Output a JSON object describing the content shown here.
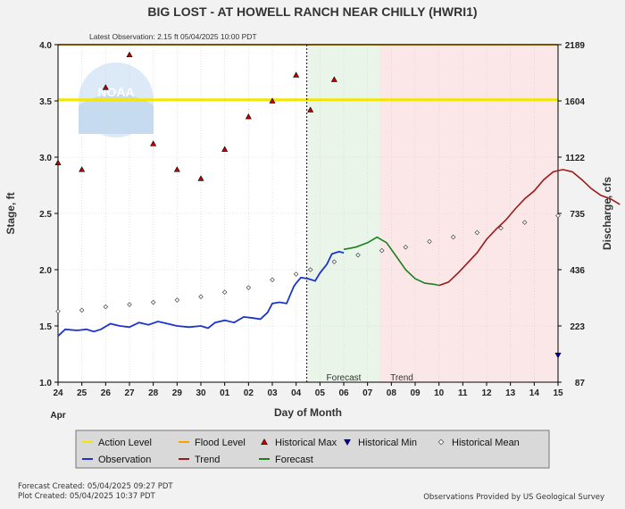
{
  "chart_data": {
    "type": "line",
    "title": "BIG LOST - AT HOWELL RANCH NEAR CHILLY  (HWRI1)",
    "subtitle": "Latest Observation: 2.15 ft 05/04/2025 10:00 PDT",
    "xlabel": "Day of Month",
    "xlabel_month": "Apr",
    "ylabel_left": "Stage, ft",
    "ylabel_right": "Discharge, cfs",
    "x_ticks": [
      "24",
      "25",
      "26",
      "27",
      "28",
      "29",
      "30",
      "01",
      "02",
      "03",
      "04",
      "05",
      "06",
      "07",
      "08",
      "09",
      "10",
      "11",
      "12",
      "13",
      "14",
      "15"
    ],
    "ylim_left": [
      1.0,
      4.0
    ],
    "y_ticks_left": [
      "1.0",
      "1.5",
      "2.0",
      "2.5",
      "3.0",
      "3.5",
      "4.0"
    ],
    "y_ticks_right": [
      {
        "stage": 1.0,
        "label": "87"
      },
      {
        "stage": 1.5,
        "label": "223"
      },
      {
        "stage": 2.0,
        "label": "436"
      },
      {
        "stage": 2.5,
        "label": "735"
      },
      {
        "stage": 3.0,
        "label": "1122"
      },
      {
        "stage": 3.5,
        "label": "1604"
      },
      {
        "stage": 4.0,
        "label": "2189"
      }
    ],
    "action_level": 3.51,
    "flood_level": 4.0,
    "zones": {
      "forecast": {
        "label": "Forecast",
        "start": 10.5,
        "end": 13.5
      },
      "trend": {
        "label": "Trend",
        "start": 13.5,
        "end": 21.0
      }
    },
    "now_x": 10.45,
    "observation": [
      [
        0,
        1.41
      ],
      [
        0.3,
        1.47
      ],
      [
        0.8,
        1.46
      ],
      [
        1.2,
        1.47
      ],
      [
        1.5,
        1.45
      ],
      [
        1.8,
        1.47
      ],
      [
        2.2,
        1.52
      ],
      [
        2.6,
        1.5
      ],
      [
        3.0,
        1.49
      ],
      [
        3.4,
        1.53
      ],
      [
        3.8,
        1.51
      ],
      [
        4.2,
        1.54
      ],
      [
        4.6,
        1.52
      ],
      [
        5.0,
        1.5
      ],
      [
        5.5,
        1.49
      ],
      [
        6.0,
        1.5
      ],
      [
        6.3,
        1.48
      ],
      [
        6.6,
        1.53
      ],
      [
        7.0,
        1.55
      ],
      [
        7.4,
        1.53
      ],
      [
        7.8,
        1.58
      ],
      [
        8.2,
        1.57
      ],
      [
        8.5,
        1.56
      ],
      [
        8.8,
        1.62
      ],
      [
        9.0,
        1.7
      ],
      [
        9.3,
        1.71
      ],
      [
        9.6,
        1.7
      ],
      [
        9.9,
        1.85
      ],
      [
        10.0,
        1.88
      ],
      [
        10.2,
        1.93
      ],
      [
        10.5,
        1.92
      ],
      [
        10.8,
        1.9
      ],
      [
        11.0,
        1.97
      ],
      [
        11.3,
        2.05
      ],
      [
        11.5,
        2.14
      ],
      [
        11.8,
        2.16
      ],
      [
        12.0,
        2.15
      ]
    ],
    "forecast": [
      [
        12.0,
        2.18
      ],
      [
        12.5,
        2.2
      ],
      [
        13.0,
        2.24
      ],
      [
        13.4,
        2.29
      ],
      [
        13.8,
        2.24
      ],
      [
        14.2,
        2.12
      ],
      [
        14.6,
        2.0
      ],
      [
        15.0,
        1.92
      ],
      [
        15.4,
        1.88
      ],
      [
        15.8,
        1.87
      ],
      [
        16.0,
        1.86
      ]
    ],
    "trend": [
      [
        16.0,
        1.86
      ],
      [
        16.4,
        1.89
      ],
      [
        16.8,
        1.97
      ],
      [
        17.2,
        2.06
      ],
      [
        17.6,
        2.15
      ],
      [
        18.0,
        2.27
      ],
      [
        18.4,
        2.36
      ],
      [
        18.8,
        2.44
      ],
      [
        19.2,
        2.54
      ],
      [
        19.6,
        2.63
      ],
      [
        20.0,
        2.7
      ],
      [
        20.4,
        2.8
      ],
      [
        20.8,
        2.87
      ],
      [
        21.2,
        2.89
      ],
      [
        21.6,
        2.87
      ],
      [
        22.0,
        2.8
      ],
      [
        22.4,
        2.72
      ],
      [
        22.8,
        2.66
      ],
      [
        23.2,
        2.63
      ],
      [
        23.6,
        2.58
      ]
    ],
    "historical_max": [
      [
        0,
        2.95
      ],
      [
        1,
        2.89
      ],
      [
        2,
        3.62
      ],
      [
        3,
        3.91
      ],
      [
        4,
        3.12
      ],
      [
        5,
        2.89
      ],
      [
        6,
        2.81
      ],
      [
        7,
        3.07
      ],
      [
        8,
        3.36
      ],
      [
        9,
        3.5
      ],
      [
        10,
        3.73
      ],
      [
        10.6,
        3.42
      ],
      [
        11.6,
        3.69
      ]
    ],
    "historical_min": [
      [
        21,
        1.24
      ]
    ],
    "historical_mean": [
      [
        0,
        1.63
      ],
      [
        1,
        1.64
      ],
      [
        2,
        1.67
      ],
      [
        3,
        1.69
      ],
      [
        4,
        1.71
      ],
      [
        5,
        1.73
      ],
      [
        6,
        1.76
      ],
      [
        7,
        1.8
      ],
      [
        8,
        1.84
      ],
      [
        9,
        1.91
      ],
      [
        10,
        1.96
      ],
      [
        10.6,
        2.0
      ],
      [
        11.6,
        2.07
      ],
      [
        12.6,
        2.13
      ],
      [
        13.6,
        2.17
      ],
      [
        14.6,
        2.2
      ],
      [
        15.6,
        2.25
      ],
      [
        16.6,
        2.29
      ],
      [
        17.6,
        2.33
      ],
      [
        18.6,
        2.37
      ],
      [
        19.6,
        2.42
      ],
      [
        21.0,
        2.48
      ]
    ],
    "legend": [
      {
        "label": "Action Level",
        "kind": "line",
        "color": "#f3e600"
      },
      {
        "label": "Flood Level",
        "kind": "line",
        "color": "#f5a300"
      },
      {
        "label": "Historical Max",
        "kind": "tri-up",
        "color": "#c00000"
      },
      {
        "label": "Historical Min",
        "kind": "tri-down",
        "color": "#0000b0"
      },
      {
        "label": "Historical Mean",
        "kind": "diamond",
        "color": "#ffffff"
      },
      {
        "label": "Observation",
        "kind": "line",
        "color": "#1c33cc"
      },
      {
        "label": "Trend",
        "kind": "line",
        "color": "#9b1a1a"
      },
      {
        "label": "Forecast",
        "kind": "line",
        "color": "#1e7f1e"
      }
    ],
    "colors": {
      "observation": "#1c33cc",
      "forecast": "#1e7f1e",
      "trend": "#9b1a1a",
      "action": "#f3e600",
      "flood": "#f5a300",
      "forecast_zone": "#e8f5e8",
      "trend_zone": "#fbe7e7"
    }
  },
  "footer": {
    "forecast_created": "Forecast Created: 05/04/2025 09:27 PDT",
    "plot_created": "Plot Created: 05/04/2025 10:37 PDT",
    "credit": "Observations Provided by US Geological Survey"
  },
  "watermark": {
    "text": "NOAA"
  }
}
